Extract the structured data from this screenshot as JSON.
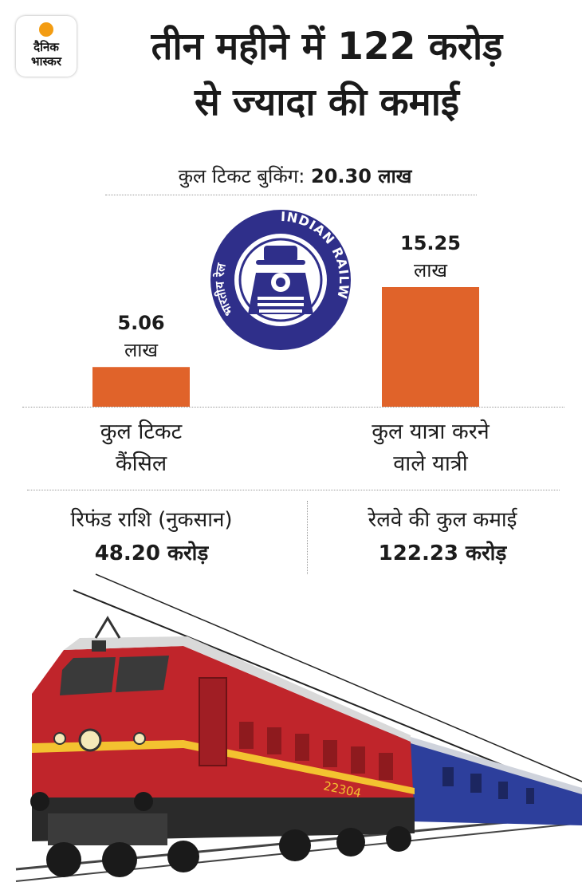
{
  "logo": {
    "line1": "दैनिक",
    "line2": "भास्कर"
  },
  "title": {
    "line1": "तीन महीने में 122 करोड़",
    "line2": "से ज्यादा की कमाई"
  },
  "booking": {
    "label": "कुल टिकट बुकिंग:",
    "value": "20.30 लाख"
  },
  "emblem": {
    "text_en": "INDIAN RAILWAYS",
    "text_hi": "भारतीय रेल",
    "color": "#2f2f8a"
  },
  "chart_data": {
    "type": "bar",
    "unit": "लाख",
    "categories": [
      {
        "line1": "कुल टिकट",
        "line2": "कैंसिल"
      },
      {
        "line1": "कुल यात्रा करने",
        "line2": "वाले यात्री"
      }
    ],
    "values": [
      5.06,
      15.25
    ],
    "value_labels": [
      "5.06",
      "15.25"
    ],
    "color": "#e0632a",
    "ylim": [
      0,
      15.25
    ]
  },
  "stats": [
    {
      "label": "रिफंड राशि (नुकसान)",
      "value": "48.20 करोड़"
    },
    {
      "label": "रेलवे की कुल कमाई",
      "value": "122.23 करोड़"
    }
  ],
  "train": {
    "number": "22304",
    "colors": {
      "engine_red": "#c0252b",
      "stripe": "#f3c230",
      "coach_blue": "#2d3f9c",
      "dark": "#2a2a2a"
    }
  }
}
